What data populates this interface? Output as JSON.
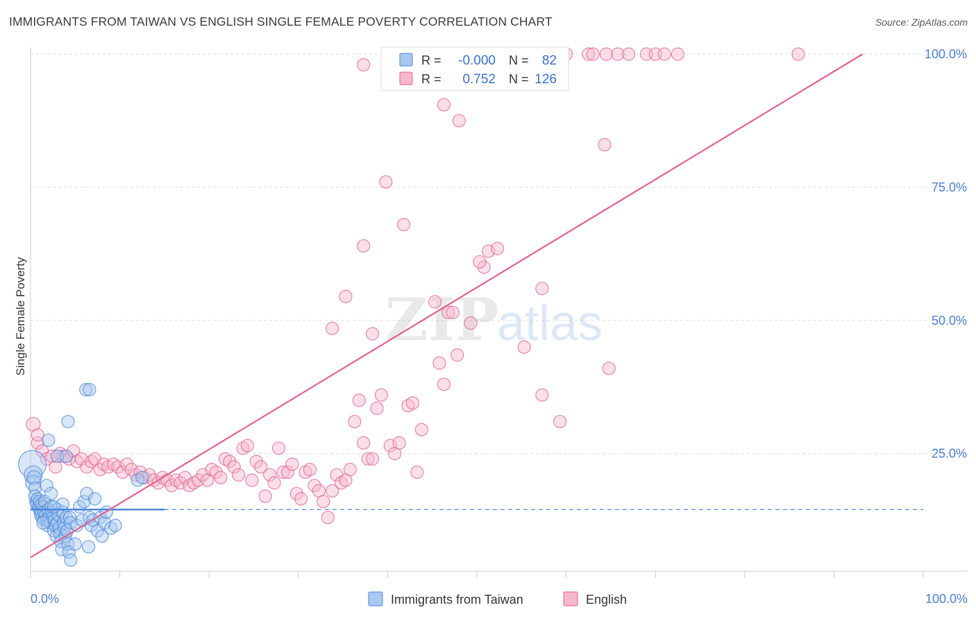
{
  "title": "IMMIGRANTS FROM TAIWAN VS ENGLISH SINGLE FEMALE POVERTY CORRELATION CHART",
  "source": "Source: ZipAtlas.com",
  "watermark": {
    "zip": "ZIP",
    "atlas": "atlas"
  },
  "colors": {
    "blue": "#4a87d8",
    "blue_fill": "#a9c8f0",
    "pink": "#e0628e",
    "pink_fill": "#f7b8cb",
    "axis_text": "#4a7fd0",
    "grid": "#dddddd"
  },
  "chart_data": {
    "type": "scatter",
    "title": "IMMIGRANTS FROM TAIWAN VS ENGLISH SINGLE FEMALE POVERTY CORRELATION CHART",
    "xlabel": "",
    "ylabel": "Single Female Poverty",
    "xlim": [
      0,
      100
    ],
    "ylim": [
      0,
      102
    ],
    "x_tick_labels": [
      "0.0%",
      "100.0%"
    ],
    "y_ticks": [
      25,
      50,
      75,
      100
    ],
    "y_tick_labels": [
      "25.0%",
      "50.0%",
      "75.0%",
      "100.0%"
    ],
    "grid": "horizontal dashed",
    "legend_position": "bottom-center",
    "stats": [
      {
        "series": "Immigrants from Taiwan",
        "r_label": "R =",
        "r": "-0.000",
        "n_label": "N =",
        "n": "82"
      },
      {
        "series": "English",
        "r_label": "R =",
        "r": "0.752",
        "n_label": "N =",
        "n": "126"
      }
    ],
    "series": [
      {
        "name": "Immigrants from Taiwan",
        "color": "#4a87d8",
        "trend": {
          "x": [
            0,
            15
          ],
          "y": [
            14.5,
            14.5
          ],
          "dashed_extension_to_x": 100
        },
        "points": [
          [
            0.2,
            23.0
          ],
          [
            0.3,
            21.0
          ],
          [
            0.3,
            19.5
          ],
          [
            0.4,
            20.5
          ],
          [
            0.5,
            18.5
          ],
          [
            0.5,
            17.0
          ],
          [
            0.6,
            16.0
          ],
          [
            0.7,
            15.5
          ],
          [
            0.8,
            16.5
          ],
          [
            0.9,
            15.0
          ],
          [
            1.0,
            14.5
          ],
          [
            1.0,
            16.0
          ],
          [
            1.1,
            13.5
          ],
          [
            1.2,
            15.5
          ],
          [
            1.2,
            14.0
          ],
          [
            1.3,
            13.0
          ],
          [
            1.4,
            15.0
          ],
          [
            1.5,
            14.0
          ],
          [
            1.5,
            12.5
          ],
          [
            1.6,
            16.0
          ],
          [
            1.7,
            13.5
          ],
          [
            1.8,
            12.5
          ],
          [
            1.9,
            11.5
          ],
          [
            2.0,
            14.5
          ],
          [
            2.1,
            13.0
          ],
          [
            2.2,
            12.0
          ],
          [
            2.3,
            15.0
          ],
          [
            2.4,
            14.0
          ],
          [
            2.5,
            13.0
          ],
          [
            2.6,
            10.5
          ],
          [
            2.7,
            12.5
          ],
          [
            2.8,
            11.5
          ],
          [
            2.9,
            9.5
          ],
          [
            3.0,
            14.5
          ],
          [
            3.0,
            12.0
          ],
          [
            3.1,
            13.5
          ],
          [
            3.2,
            11.0
          ],
          [
            3.3,
            10.0
          ],
          [
            3.4,
            8.5
          ],
          [
            3.5,
            7.0
          ],
          [
            3.6,
            14.0
          ],
          [
            3.7,
            12.0
          ],
          [
            3.8,
            11.0
          ],
          [
            3.9,
            9.5
          ],
          [
            4.0,
            13.0
          ],
          [
            4.1,
            10.5
          ],
          [
            4.2,
            8.0
          ],
          [
            4.3,
            6.5
          ],
          [
            4.4,
            13.0
          ],
          [
            4.5,
            12.0
          ],
          [
            1.8,
            19.0
          ],
          [
            2.0,
            27.5
          ],
          [
            2.3,
            17.5
          ],
          [
            3.0,
            24.5
          ],
          [
            4.0,
            24.5
          ],
          [
            4.2,
            31.0
          ],
          [
            4.5,
            5.0
          ],
          [
            5.0,
            8.0
          ],
          [
            5.2,
            11.5
          ],
          [
            5.5,
            15.0
          ],
          [
            5.8,
            12.5
          ],
          [
            6.0,
            16.0
          ],
          [
            6.3,
            17.5
          ],
          [
            6.5,
            7.5
          ],
          [
            6.6,
            13.0
          ],
          [
            6.8,
            11.5
          ],
          [
            7.0,
            12.5
          ],
          [
            7.2,
            16.5
          ],
          [
            7.5,
            10.5
          ],
          [
            7.8,
            13.0
          ],
          [
            8.0,
            9.5
          ],
          [
            8.3,
            12.0
          ],
          [
            8.5,
            14.0
          ],
          [
            9.0,
            11.0
          ],
          [
            9.5,
            11.5
          ],
          [
            6.2,
            37.0
          ],
          [
            6.6,
            37.0
          ],
          [
            12.0,
            20.0
          ],
          [
            12.5,
            20.5
          ],
          [
            3.6,
            15.5
          ],
          [
            2.6,
            15.0
          ],
          [
            1.4,
            12.0
          ]
        ],
        "sizes": [
          40,
          26,
          22,
          20,
          18,
          18,
          18,
          18,
          18,
          18,
          18,
          18,
          18,
          18,
          18,
          18,
          18,
          18,
          18,
          18,
          18,
          18,
          18,
          18,
          18,
          18,
          18,
          18,
          18,
          18,
          18,
          18,
          18,
          18,
          18,
          18,
          18,
          18,
          18,
          18,
          18,
          18,
          18,
          18,
          18,
          18,
          18,
          18,
          18,
          18,
          18,
          18,
          18,
          18,
          18,
          18,
          18,
          18,
          18,
          18,
          18,
          18,
          18,
          18,
          18,
          18,
          18,
          18,
          18,
          18,
          18,
          18,
          18,
          18,
          18,
          18,
          18,
          18,
          18,
          18,
          18,
          18
        ]
      },
      {
        "name": "English",
        "color": "#e0628e",
        "trend": {
          "x": [
            0,
            93.2
          ],
          "y": [
            5.5,
            100.0
          ]
        },
        "points": [
          [
            0.3,
            30.5
          ],
          [
            0.8,
            27.0
          ],
          [
            1.3,
            25.5
          ],
          [
            1.8,
            24.0
          ],
          [
            2.4,
            24.5
          ],
          [
            2.8,
            22.5
          ],
          [
            3.3,
            25.0
          ],
          [
            3.7,
            24.5
          ],
          [
            4.3,
            24.0
          ],
          [
            4.8,
            25.5
          ],
          [
            5.2,
            23.5
          ],
          [
            5.7,
            24.0
          ],
          [
            6.3,
            22.5
          ],
          [
            6.8,
            23.5
          ],
          [
            7.2,
            24.0
          ],
          [
            7.8,
            22.0
          ],
          [
            8.2,
            23.0
          ],
          [
            8.7,
            22.5
          ],
          [
            9.3,
            23.0
          ],
          [
            9.8,
            22.5
          ],
          [
            10.3,
            21.5
          ],
          [
            10.8,
            23.0
          ],
          [
            11.3,
            22.0
          ],
          [
            11.8,
            21.0
          ],
          [
            12.3,
            21.5
          ],
          [
            12.8,
            20.5
          ],
          [
            13.3,
            21.0
          ],
          [
            13.8,
            20.0
          ],
          [
            14.3,
            19.5
          ],
          [
            14.8,
            20.5
          ],
          [
            15.3,
            20.0
          ],
          [
            15.8,
            19.0
          ],
          [
            16.3,
            20.0
          ],
          [
            16.8,
            19.5
          ],
          [
            17.3,
            20.5
          ],
          [
            17.8,
            19.0
          ],
          [
            18.3,
            19.5
          ],
          [
            18.8,
            20.0
          ],
          [
            19.3,
            21.0
          ],
          [
            19.8,
            20.0
          ],
          [
            20.3,
            22.0
          ],
          [
            20.8,
            21.5
          ],
          [
            21.3,
            20.5
          ],
          [
            21.8,
            24.0
          ],
          [
            22.3,
            23.5
          ],
          [
            22.8,
            22.5
          ],
          [
            23.3,
            21.0
          ],
          [
            23.8,
            26.0
          ],
          [
            24.3,
            26.5
          ],
          [
            24.8,
            20.0
          ],
          [
            25.3,
            23.5
          ],
          [
            25.8,
            22.5
          ],
          [
            26.3,
            17.0
          ],
          [
            26.8,
            21.0
          ],
          [
            27.3,
            19.5
          ],
          [
            27.8,
            26.0
          ],
          [
            28.3,
            21.5
          ],
          [
            28.8,
            21.5
          ],
          [
            29.3,
            23.0
          ],
          [
            29.8,
            17.5
          ],
          [
            30.3,
            16.5
          ],
          [
            30.8,
            21.5
          ],
          [
            31.3,
            22.0
          ],
          [
            31.8,
            19.0
          ],
          [
            32.3,
            18.0
          ],
          [
            32.8,
            16.0
          ],
          [
            33.3,
            13.0
          ],
          [
            33.8,
            18.0
          ],
          [
            34.3,
            21.0
          ],
          [
            34.8,
            19.5
          ],
          [
            35.3,
            20.0
          ],
          [
            35.8,
            22.0
          ],
          [
            36.3,
            31.0
          ],
          [
            36.8,
            35.0
          ],
          [
            37.3,
            27.0
          ],
          [
            37.8,
            24.0
          ],
          [
            38.3,
            24.0
          ],
          [
            38.8,
            33.5
          ],
          [
            39.3,
            36.0
          ],
          [
            40.3,
            26.5
          ],
          [
            40.8,
            25.0
          ],
          [
            41.3,
            27.0
          ],
          [
            42.3,
            34.0
          ],
          [
            42.8,
            34.5
          ],
          [
            43.3,
            21.5
          ],
          [
            43.8,
            29.5
          ],
          [
            45.3,
            53.5
          ],
          [
            45.8,
            42.0
          ],
          [
            46.3,
            38.0
          ],
          [
            46.8,
            51.5
          ],
          [
            47.3,
            51.5
          ],
          [
            47.8,
            43.5
          ],
          [
            49.3,
            49.5
          ],
          [
            50.8,
            60.0
          ],
          [
            51.3,
            63.0
          ],
          [
            52.3,
            63.5
          ],
          [
            55.3,
            45.0
          ],
          [
            57.3,
            56.0
          ],
          [
            57.3,
            36.0
          ],
          [
            59.3,
            31.0
          ],
          [
            64.3,
            83.0
          ],
          [
            64.8,
            41.0
          ],
          [
            33.8,
            48.5
          ],
          [
            35.3,
            54.5
          ],
          [
            37.3,
            64.0
          ],
          [
            38.3,
            47.5
          ],
          [
            39.8,
            76.0
          ],
          [
            41.8,
            68.0
          ],
          [
            50.3,
            61.0
          ],
          [
            37.3,
            98.0
          ],
          [
            52.3,
            100.0
          ],
          [
            55.8,
            100.0
          ],
          [
            60.0,
            100.0
          ],
          [
            62.5,
            100.0
          ],
          [
            63.0,
            100.0
          ],
          [
            64.5,
            100.0
          ],
          [
            65.8,
            100.0
          ],
          [
            67.0,
            100.0
          ],
          [
            69.0,
            100.0
          ],
          [
            70.0,
            100.0
          ],
          [
            71.0,
            100.0
          ],
          [
            72.5,
            100.0
          ],
          [
            86.0,
            100.0
          ],
          [
            0.8,
            28.5
          ],
          [
            46.3,
            90.5
          ],
          [
            48.0,
            87.5
          ]
        ],
        "sizes": [
          20,
          18,
          18,
          18,
          18,
          18,
          18,
          18,
          18,
          18,
          18,
          18,
          18,
          18,
          18,
          18,
          18,
          18,
          18,
          18,
          18,
          18,
          18,
          18,
          18,
          18,
          18,
          18,
          18,
          18,
          18,
          18,
          18,
          18,
          18,
          18,
          18,
          18,
          18,
          18,
          18,
          18,
          18,
          18,
          18,
          18,
          18,
          18,
          18,
          18,
          18,
          18,
          18,
          18,
          18,
          18,
          18,
          18,
          18,
          18,
          18,
          18,
          18,
          18,
          18,
          18,
          18,
          18,
          18,
          18,
          18,
          18,
          18,
          18,
          18,
          18,
          18,
          18,
          18,
          18,
          18,
          18,
          18,
          18,
          18,
          18,
          18,
          18,
          18,
          18,
          18,
          18,
          18,
          18,
          18,
          18,
          18,
          18,
          18,
          18,
          18,
          18,
          18,
          18,
          18,
          18,
          18,
          18,
          18,
          18,
          18,
          18,
          18,
          18,
          18,
          18,
          18,
          18,
          18,
          18,
          18,
          18,
          18,
          18,
          18,
          18
        ]
      }
    ]
  }
}
